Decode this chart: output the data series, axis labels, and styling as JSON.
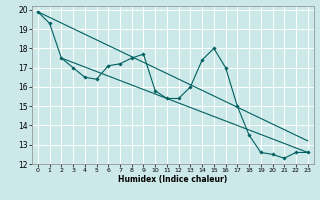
{
  "xlabel": "Humidex (Indice chaleur)",
  "ylabel": "",
  "xlim": [
    -0.5,
    23.5
  ],
  "ylim": [
    12,
    20.2
  ],
  "yticks": [
    12,
    13,
    14,
    15,
    16,
    17,
    18,
    19,
    20
  ],
  "xticks": [
    0,
    1,
    2,
    3,
    4,
    5,
    6,
    7,
    8,
    9,
    10,
    11,
    12,
    13,
    14,
    15,
    16,
    17,
    18,
    19,
    20,
    21,
    22,
    23
  ],
  "bg_color": "#cce8e8",
  "grid_color": "#ffffff",
  "line_color": "#006060",
  "series1_x": [
    0,
    1,
    2,
    3,
    4,
    5,
    6,
    7,
    8,
    9,
    10,
    11,
    12,
    13,
    14,
    15,
    16,
    17,
    18,
    19,
    20,
    21,
    22,
    23
  ],
  "series1_y": [
    19.9,
    19.3,
    17.5,
    17.0,
    16.5,
    16.4,
    17.1,
    17.2,
    17.5,
    17.7,
    15.8,
    15.4,
    15.4,
    16.0,
    17.4,
    18.0,
    17.0,
    15.0,
    13.5,
    12.6,
    12.5,
    12.3,
    12.6,
    12.6
  ],
  "trend1_x": [
    0,
    23
  ],
  "trend1_y": [
    19.9,
    13.2
  ],
  "trend2_x": [
    2,
    23
  ],
  "trend2_y": [
    17.5,
    12.6
  ]
}
